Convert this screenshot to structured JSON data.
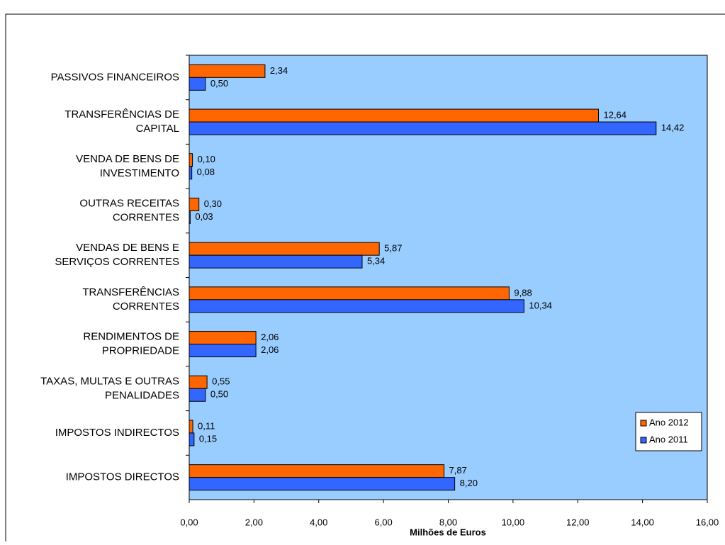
{
  "chart_data": {
    "type": "hbar",
    "x_label": "Milhões de Euros",
    "categories": [
      "PASSIVOS FINANCEIROS",
      "TRANSFERÊNCIAS DE\nCAPITAL",
      "VENDA DE BENS DE\nINVESTIMENTO",
      "OUTRAS RECEITAS\nCORRENTES",
      "VENDAS DE BENS E\nSERVIÇOS CORRENTES",
      "TRANSFERÊNCIAS\nCORRENTES",
      "RENDIMENTOS DE\nPROPRIEDADE",
      "TAXAS, MULTAS E OUTRAS\nPENALIDADES",
      "IMPOSTOS INDIRECTOS",
      "IMPOSTOS DIRECTOS"
    ],
    "series": [
      {
        "name": "Ano 2012",
        "color": "#ff6600",
        "values": [
          2.34,
          12.64,
          0.1,
          0.3,
          5.87,
          9.88,
          2.06,
          0.55,
          0.11,
          7.87
        ],
        "value_labels": [
          "2,34",
          "12,64",
          "0,10",
          "0,30",
          "5,87",
          "9,88",
          "2,06",
          "0,55",
          "0,11",
          "7,87"
        ]
      },
      {
        "name": "Ano 2011",
        "color": "#3366ff",
        "values": [
          0.5,
          14.42,
          0.08,
          0.03,
          5.34,
          10.34,
          2.06,
          0.5,
          0.15,
          8.2
        ],
        "value_labels": [
          "0,50",
          "14,42",
          "0,08",
          "0,03",
          "5,34",
          "10,34",
          "2,06",
          "0,50",
          "0,15",
          "8,20"
        ]
      }
    ],
    "xlim": [
      0,
      16
    ],
    "xticks": [
      {
        "value": 0,
        "label": "0,00"
      },
      {
        "value": 2,
        "label": "2,00"
      },
      {
        "value": 4,
        "label": "4,00"
      },
      {
        "value": 6,
        "label": "6,00"
      },
      {
        "value": 8,
        "label": "8,00"
      },
      {
        "value": 10,
        "label": "10,00"
      },
      {
        "value": 12,
        "label": "12,00"
      },
      {
        "value": 14,
        "label": "14,00"
      },
      {
        "value": 16,
        "label": "16,00"
      }
    ],
    "plot_background": "#99ccff",
    "legend": "lower right"
  }
}
